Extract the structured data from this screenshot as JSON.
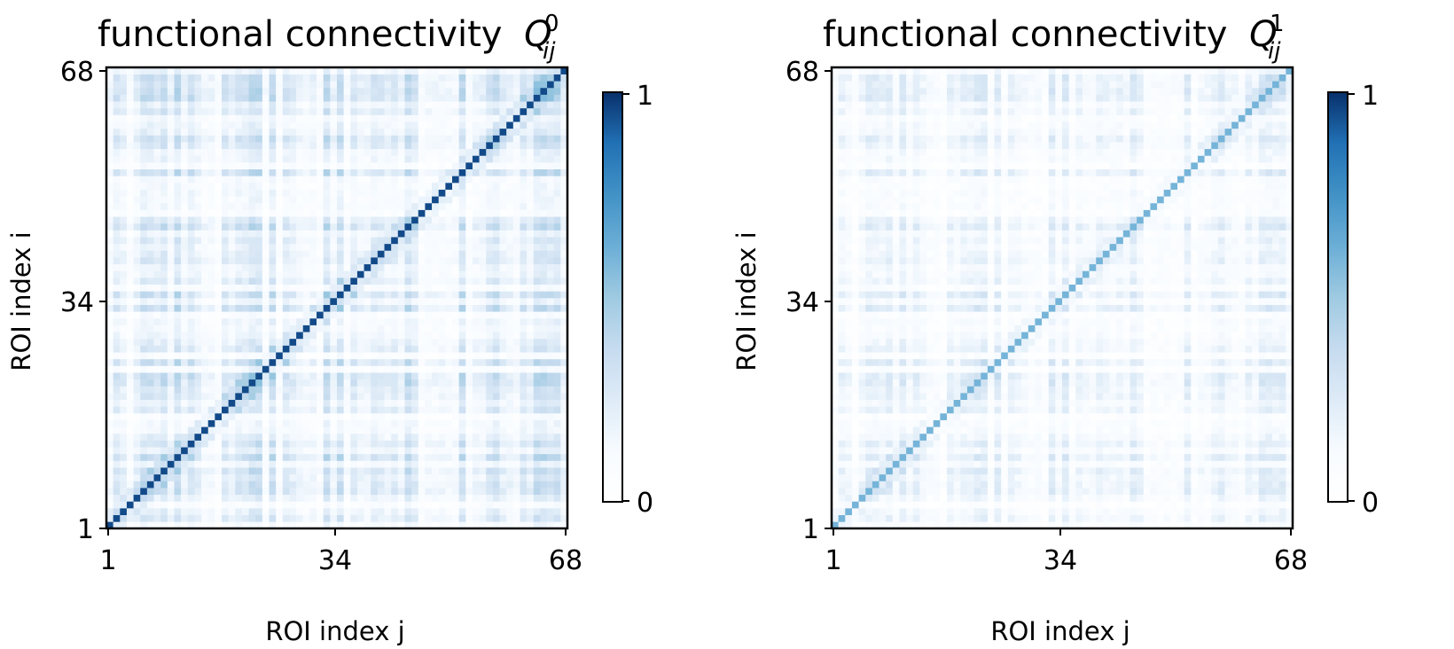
{
  "chart_data": [
    {
      "type": "heatmap",
      "title": "functional connectivity",
      "title_symbol": "Q",
      "title_superscript": "0",
      "title_subscript": "ij",
      "xlabel": "ROI index j",
      "ylabel": "ROI index i",
      "x_ticks": [
        "1",
        "34",
        "68"
      ],
      "y_ticks": [
        "1",
        "34",
        "68"
      ],
      "size": 68,
      "colorbar": {
        "min": 0,
        "max": 1,
        "tick_labels": [
          "0",
          "1"
        ],
        "colormap": "Blues"
      },
      "diagonal_value": 0.95,
      "mean_offdiagonal": 0.22
    },
    {
      "type": "heatmap",
      "title": "functional connectivity",
      "title_symbol": "Q",
      "title_superscript": "1",
      "title_subscript": "ij",
      "xlabel": "ROI index j",
      "ylabel": "ROI index i",
      "x_ticks": [
        "1",
        "34",
        "68"
      ],
      "y_ticks": [
        "1",
        "34",
        "68"
      ],
      "size": 68,
      "colorbar": {
        "min": 0,
        "max": 1,
        "tick_labels": [
          "0",
          "1"
        ],
        "colormap": "Blues"
      },
      "diagonal_value": 0.6,
      "mean_offdiagonal": 0.15
    }
  ],
  "colors": {
    "cmap_light": "#f7fbff",
    "cmap_dark": "#08306b"
  }
}
